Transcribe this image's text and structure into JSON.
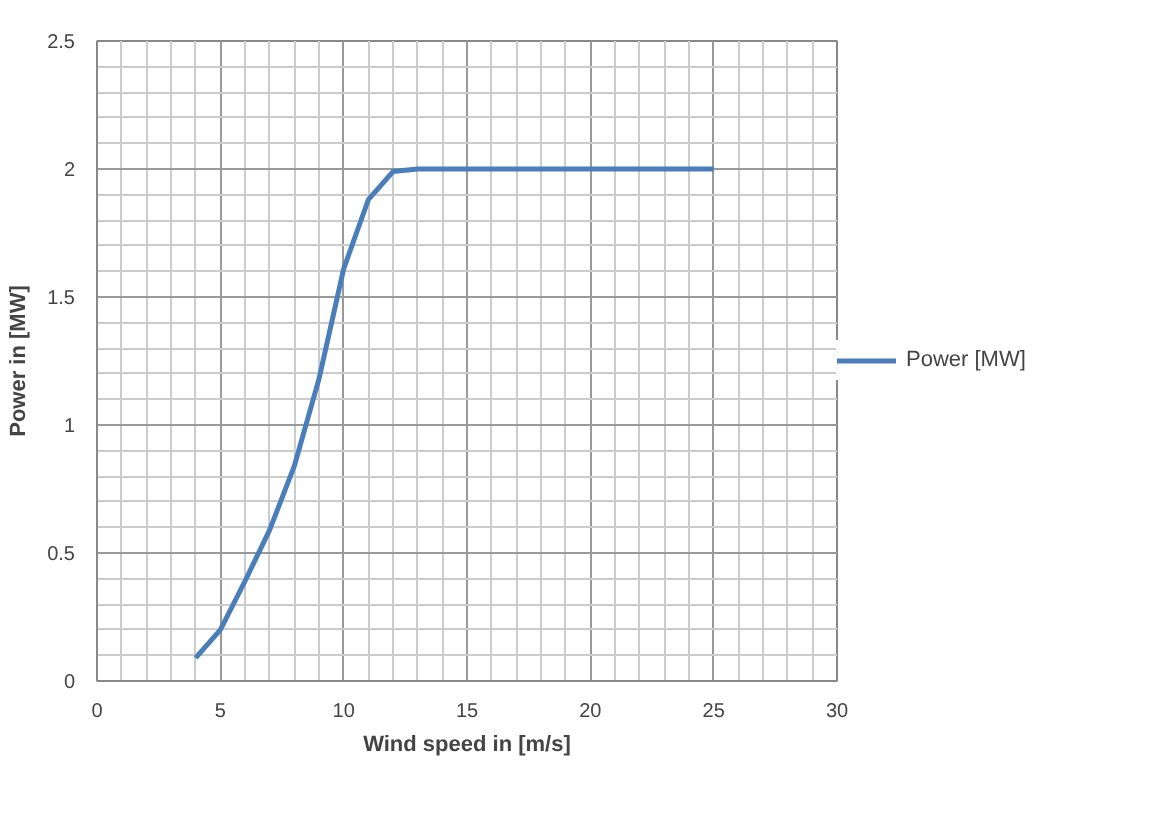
{
  "chart_data": {
    "type": "line",
    "xlabel": "Wind speed in [m/s]",
    "ylabel": "Power in [MW]",
    "x": [
      4,
      5,
      6,
      7,
      8,
      9,
      10,
      11,
      12,
      13,
      15,
      20,
      25
    ],
    "series": [
      {
        "name": "Power [MW]",
        "color": "#4a7ebb",
        "values": [
          0.09,
          0.2,
          0.39,
          0.59,
          0.84,
          1.18,
          1.61,
          1.88,
          1.99,
          2,
          2,
          2,
          2
        ]
      }
    ],
    "xlim": [
      0,
      30
    ],
    "xticks": [
      0,
      5,
      10,
      15,
      20,
      25,
      30
    ],
    "ylim": [
      0,
      2.5
    ],
    "yticks": [
      0,
      0.5,
      1,
      1.5,
      2,
      2.5
    ],
    "grid": true,
    "legend": "right",
    "marker": "none",
    "line_style": "solid"
  }
}
